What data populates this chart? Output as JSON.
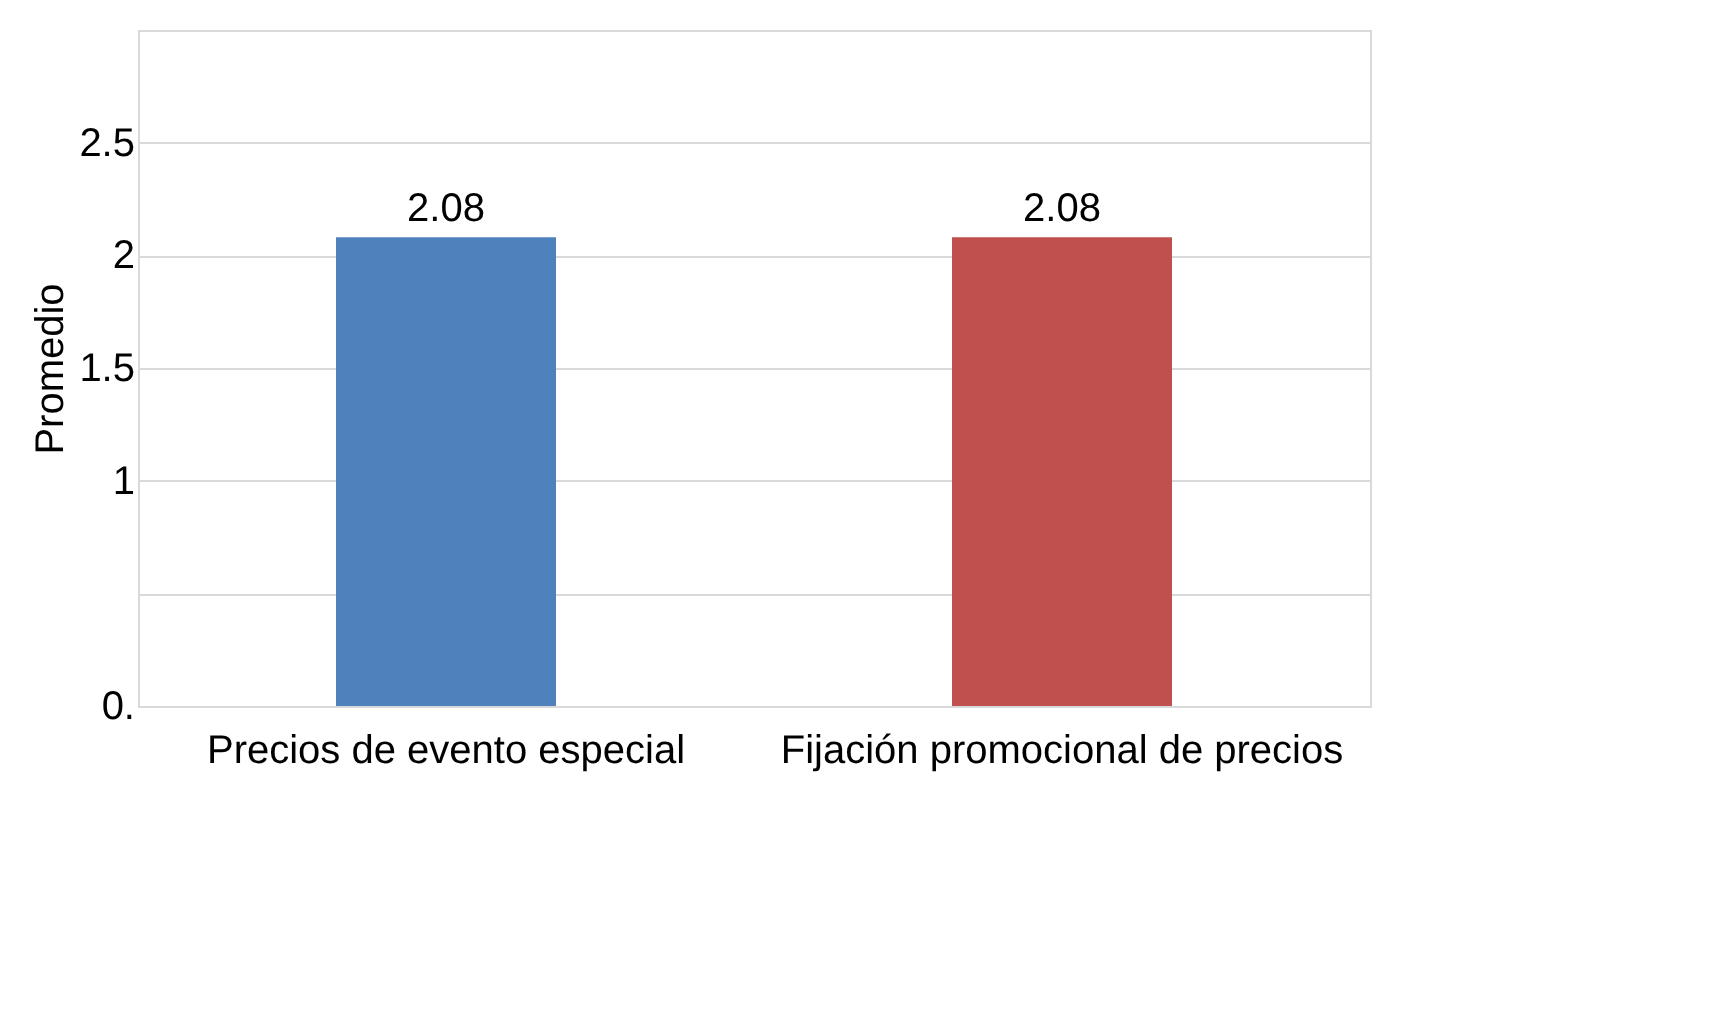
{
  "chart_data": {
    "type": "bar",
    "ylabel": "Promedio",
    "categories": [
      "Precios de evento especial",
      "Fijación promocional de precios"
    ],
    "values": [
      2.08,
      2.08
    ],
    "colors": [
      "#4f81bd",
      "#c0504d"
    ],
    "ylim": [
      0,
      3
    ],
    "yticks": [
      {
        "value": 0,
        "label": "0."
      },
      {
        "value": 0.5,
        "label": null
      },
      1,
      1.5,
      2,
      2.5,
      {
        "value": 3,
        "label": null
      }
    ],
    "grid": "y",
    "data_labels": true
  }
}
